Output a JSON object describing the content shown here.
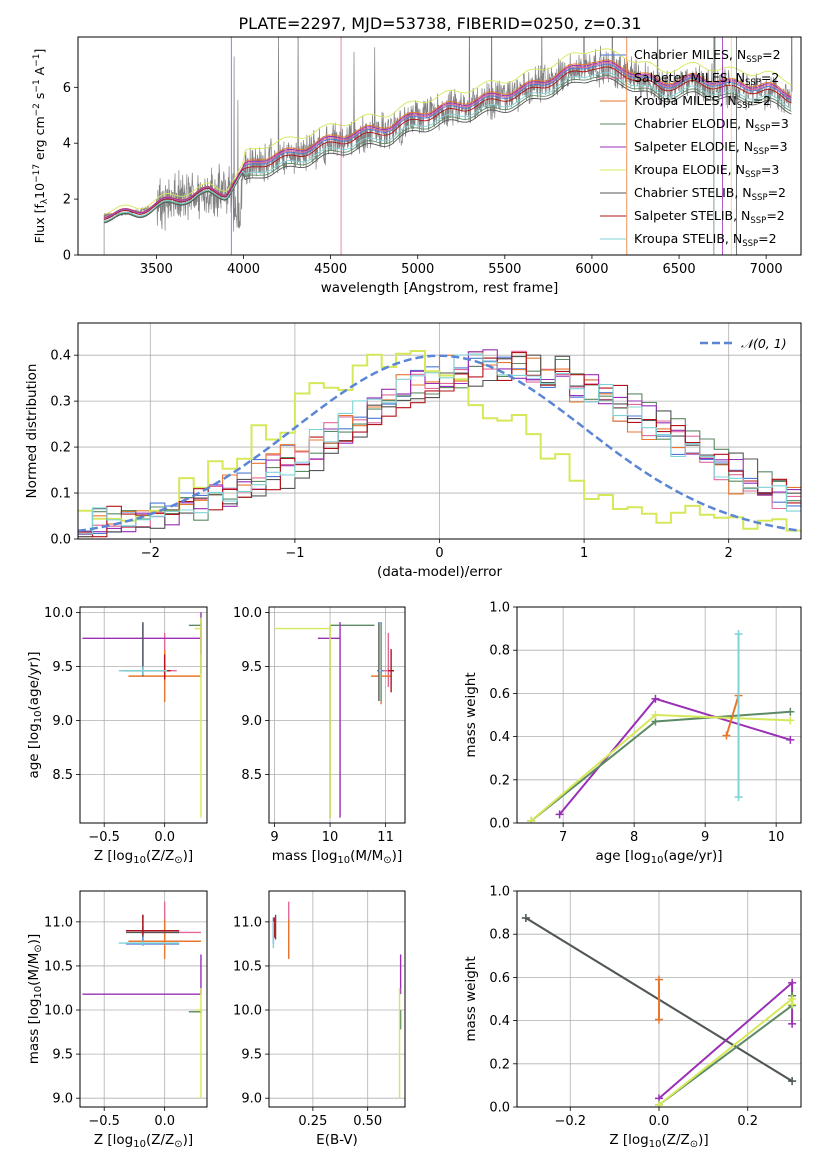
{
  "figure_title": "PLATE=2297, MJD=53738, FIBERID=0250, z=0.31",
  "colors": {
    "Chabrier MILES": "#4e79d6",
    "Salpeter MILES": "#e2689a",
    "Kroupa MILES": "#e8772e",
    "Chabrier ELODIE": "#5c8a64",
    "Salpeter ELODIE": "#9a2fb6",
    "Kroupa ELODIE": "#d6e85a",
    "Chabrier STELIB": "#555555",
    "Salpeter STELIB": "#b3141b",
    "Kroupa STELIB": "#7fd3d6"
  },
  "chart_data": [
    {
      "id": "spectrum",
      "type": "line",
      "xlabel": "wavelength [Angstrom, rest frame]",
      "ylabel": "Flux [f$_\\lambda$10$^{-17}$ erg cm$^{-2}$ s$^{-1}$ A$^{-1}$]",
      "ylabel_text": "Flux [f",
      "xlim": [
        3050,
        7200
      ],
      "ylim": [
        0,
        7.8
      ],
      "xticks": [
        3500,
        4000,
        4500,
        5000,
        5500,
        6000,
        6500,
        7000
      ],
      "yticks": [
        0,
        2,
        4,
        6
      ],
      "legend_position": "upper right",
      "legend": [
        {
          "model": "Chabrier MILES",
          "label": "Chabrier MILES, N",
          "sub": "SSP",
          "suffix": "=2"
        },
        {
          "model": "Salpeter MILES",
          "label": "Salpeter MILES, N",
          "sub": "SSP",
          "suffix": "=2"
        },
        {
          "model": "Kroupa MILES",
          "label": "Kroupa MILES, N",
          "sub": "SSP",
          "suffix": "=2"
        },
        {
          "model": "Chabrier ELODIE",
          "label": "Chabrier ELODIE, N",
          "sub": "SSP",
          "suffix": "=3"
        },
        {
          "model": "Salpeter ELODIE",
          "label": "Salpeter ELODIE, N",
          "sub": "SSP",
          "suffix": "=3"
        },
        {
          "model": "Kroupa ELODIE",
          "label": "Kroupa ELODIE, N",
          "sub": "SSP",
          "suffix": "=3"
        },
        {
          "model": "Chabrier STELIB",
          "label": "Chabrier STELIB, N",
          "sub": "SSP",
          "suffix": "=2"
        },
        {
          "model": "Salpeter STELIB",
          "label": "Salpeter STELIB, N",
          "sub": "SSP",
          "suffix": "=2"
        },
        {
          "model": "Kroupa STELIB",
          "label": "Kroupa STELIB, N",
          "sub": "SSP",
          "suffix": "=2"
        }
      ],
      "observed_color": "#808080",
      "continuum_x": [
        3200,
        3400,
        3550,
        3700,
        3800,
        3900,
        4000,
        4100,
        4250,
        4400,
        4550,
        4700,
        4850,
        5000,
        5200,
        5400,
        5600,
        5800,
        6000,
        6200,
        6400,
        6600,
        6800,
        7000,
        7150
      ],
      "continuum_y": [
        1.4,
        1.55,
        1.9,
        2.1,
        2.3,
        2.2,
        3.0,
        3.3,
        3.5,
        3.8,
        4.1,
        4.3,
        4.5,
        4.9,
        5.2,
        5.5,
        5.8,
        6.3,
        6.8,
        6.5,
        6.0,
        6.2,
        6.0,
        5.9,
        5.6
      ],
      "model_offsets": {
        "Chabrier MILES": 0.05,
        "Salpeter MILES": 0.1,
        "Kroupa MILES": 0.2,
        "Chabrier ELODIE": -0.35,
        "Salpeter ELODIE": 0.15,
        "Kroupa ELODIE": 0.6,
        "Chabrier STELIB": -0.45,
        "Salpeter STELIB": -0.05,
        "Kroupa STELIB": -0.25
      }
    },
    {
      "id": "residuals",
      "type": "line",
      "xlabel": "(data-model)/error",
      "ylabel": "Normed distribution",
      "xlim": [
        -2.5,
        2.5
      ],
      "ylim": [
        0,
        0.47
      ],
      "xticks": [
        -2,
        -1,
        0,
        1,
        2
      ],
      "yticks": [
        0.0,
        0.1,
        0.2,
        0.3,
        0.4
      ],
      "legend_position": "upper right",
      "gaussian": {
        "label": "𝒩(0, 1)",
        "mean": 0,
        "sigma": 1,
        "color": "#5b86d6"
      },
      "bins": 50,
      "hist_shift": {
        "Chabrier MILES": 0.38,
        "Salpeter MILES": 0.42,
        "Kroupa MILES": 0.36,
        "Chabrier ELODIE": 0.5,
        "Salpeter ELODIE": 0.45,
        "Kroupa ELODIE": -0.3,
        "Chabrier STELIB": 0.55,
        "Salpeter STELIB": 0.48,
        "Kroupa STELIB": 0.4
      }
    },
    {
      "id": "age_vs_Z",
      "type": "scatter",
      "xlabel": "Z [log",
      "xlabel_parts": [
        "Z [log",
        "10",
        "(Z/Z",
        "⊙",
        ")]"
      ],
      "ylabel": "age  [log10(age/yr)]",
      "ylabel_parts": [
        "age  [log",
        "10",
        "(age/yr)]"
      ],
      "xlim": [
        -0.7,
        0.35
      ],
      "ylim": [
        8.05,
        10.05
      ],
      "xticks": [
        -0.5,
        0.0
      ],
      "yticks": [
        8.5,
        9.0,
        9.5,
        10.0
      ],
      "points": [
        {
          "model": "Chabrier MILES",
          "x": -0.18,
          "y": 9.46,
          "xerr": [
            0.14,
            0.14
          ],
          "yerr": [
            0.04,
            0.44
          ]
        },
        {
          "model": "Salpeter MILES",
          "x": 0.0,
          "y": 9.46,
          "xerr": [
            0.1,
            0.1
          ],
          "yerr": [
            0.1,
            0.35
          ]
        },
        {
          "model": "Kroupa MILES",
          "x": 0.0,
          "y": 9.41,
          "xerr": [
            0.3,
            0.3
          ],
          "yerr": [
            0.24,
            0.24
          ]
        },
        {
          "model": "Chabrier ELODIE",
          "x": 0.3,
          "y": 9.88,
          "xerr": [
            0.1,
            0.0
          ],
          "yerr": [
            0.45,
            0.02
          ]
        },
        {
          "model": "Salpeter ELODIE",
          "x": 0.3,
          "y": 9.76,
          "xerr": [
            0.98,
            0.0
          ],
          "yerr": [
            0.15,
            0.24
          ]
        },
        {
          "model": "Kroupa ELODIE",
          "x": 0.3,
          "y": 9.85,
          "xerr": [
            0.05,
            0.0
          ],
          "yerr": [
            1.75,
            0.1
          ]
        },
        {
          "model": "Chabrier STELIB",
          "x": -0.18,
          "y": 9.46,
          "xerr": [
            0.18,
            0.18
          ],
          "yerr": [
            0.05,
            0.45
          ]
        },
        {
          "model": "Salpeter STELIB",
          "x": 0.0,
          "y": 9.46,
          "xerr": [
            0.05,
            0.05
          ],
          "yerr": [
            0.08,
            0.15
          ]
        },
        {
          "model": "Kroupa STELIB",
          "x": -0.18,
          "y": 9.46,
          "xerr": [
            0.2,
            0.2
          ],
          "yerr": [
            0.04,
            0.04
          ]
        }
      ]
    },
    {
      "id": "age_vs_mass",
      "type": "scatter",
      "xlabel": "mass [log10(M/M⊙)]",
      "xlabel_parts": [
        "mass [log",
        "10",
        "(M/M",
        "⊙",
        ")]"
      ],
      "ylabel": "",
      "xlim": [
        8.9,
        11.35
      ],
      "ylim": [
        8.05,
        10.05
      ],
      "xticks": [
        9,
        10,
        11
      ],
      "yticks": [
        8.5,
        9.0,
        9.5,
        10.0
      ],
      "points": [
        {
          "model": "Chabrier MILES",
          "x": 10.92,
          "y": 9.46,
          "xerr": [
            0.05,
            0.05
          ],
          "yerr": [
            0.28,
            0.45
          ]
        },
        {
          "model": "Salpeter MILES",
          "x": 11.05,
          "y": 9.46,
          "xerr": [
            0.1,
            0.1
          ],
          "yerr": [
            0.15,
            0.35
          ]
        },
        {
          "model": "Kroupa MILES",
          "x": 10.92,
          "y": 9.41,
          "xerr": [
            0.18,
            0.18
          ],
          "yerr": [
            0.26,
            0.48
          ]
        },
        {
          "model": "Chabrier ELODIE",
          "x": 10.0,
          "y": 9.88,
          "xerr": [
            0.0,
            0.8
          ],
          "yerr": [
            1.78,
            0.0
          ]
        },
        {
          "model": "Salpeter ELODIE",
          "x": 10.18,
          "y": 9.76,
          "xerr": [
            0.4,
            0.0
          ],
          "yerr": [
            1.66,
            0.15
          ]
        },
        {
          "model": "Kroupa ELODIE",
          "x": 10.0,
          "y": 9.85,
          "xerr": [
            1.0,
            0.0
          ],
          "yerr": [
            1.75,
            0.05
          ]
        },
        {
          "model": "Chabrier STELIB",
          "x": 10.88,
          "y": 9.46,
          "xerr": [
            0.03,
            0.03
          ],
          "yerr": [
            0.28,
            0.45
          ]
        },
        {
          "model": "Salpeter STELIB",
          "x": 11.1,
          "y": 9.46,
          "xerr": [
            0.05,
            0.05
          ],
          "yerr": [
            0.2,
            0.2
          ]
        },
        {
          "model": "Kroupa STELIB",
          "x": 10.9,
          "y": 9.46,
          "xerr": [
            0.02,
            0.02
          ],
          "yerr": [
            0.28,
            0.44
          ]
        }
      ]
    },
    {
      "id": "weight_vs_age",
      "type": "line",
      "xlabel": "age  [log10(age/yr)]",
      "xlabel_parts": [
        "age  [log",
        "10",
        "(age/yr)]"
      ],
      "ylabel": "mass weight",
      "xlim": [
        6.35,
        10.35
      ],
      "ylim": [
        0,
        1
      ],
      "xticks": [
        6,
        7,
        8,
        9,
        10
      ],
      "yticks": [
        0.0,
        0.2,
        0.4,
        0.6,
        0.8,
        1.0
      ],
      "series": [
        {
          "model": "Salpeter ELODIE",
          "x": [
            6.95,
            8.3,
            10.2
          ],
          "y": [
            0.04,
            0.575,
            0.385
          ]
        },
        {
          "model": "Chabrier ELODIE",
          "x": [
            6.55,
            8.3,
            10.2
          ],
          "y": [
            0.01,
            0.47,
            0.515
          ]
        },
        {
          "model": "Kroupa ELODIE",
          "x": [
            6.55,
            8.3,
            10.2
          ],
          "y": [
            0.01,
            0.5,
            0.475
          ]
        },
        {
          "model": "Kroupa MILES",
          "x": [
            9.3,
            9.47
          ],
          "y": [
            0.405,
            0.59
          ]
        },
        {
          "model": "Kroupa STELIB",
          "x": [
            9.47,
            9.47
          ],
          "y": [
            0.12,
            0.875
          ]
        }
      ]
    },
    {
      "id": "mass_vs_Z",
      "type": "scatter",
      "xlabel": "Z [log10(Z/Z⊙)]",
      "xlabel_parts": [
        "Z [log",
        "10",
        "(Z/Z",
        "⊙",
        ")]"
      ],
      "ylabel": "mass [log10(M/M⊙)]",
      "ylabel_parts": [
        "mass [log",
        "10",
        "(M/M",
        "⊙",
        ")]"
      ],
      "xlim": [
        -0.7,
        0.35
      ],
      "ylim": [
        8.9,
        11.35
      ],
      "xticks": [
        -0.5,
        0.0
      ],
      "yticks": [
        9.0,
        9.5,
        10.0,
        10.5,
        11.0
      ],
      "points": [
        {
          "model": "Chabrier MILES",
          "x": -0.18,
          "y": 10.75,
          "xerr": [
            0.14,
            0.3
          ],
          "yerr": [
            0.02,
            0.2
          ]
        },
        {
          "model": "Salpeter MILES",
          "x": 0.0,
          "y": 10.88,
          "xerr": [
            0.2,
            0.3
          ],
          "yerr": [
            0.1,
            0.35
          ]
        },
        {
          "model": "Kroupa MILES",
          "x": 0.0,
          "y": 10.78,
          "xerr": [
            0.3,
            0.3
          ],
          "yerr": [
            0.2,
            0.25
          ]
        },
        {
          "model": "Chabrier ELODIE",
          "x": 0.3,
          "y": 9.98,
          "xerr": [
            0.1,
            0.0
          ],
          "yerr": [
            0.02,
            0.02
          ]
        },
        {
          "model": "Salpeter ELODIE",
          "x": 0.3,
          "y": 10.18,
          "xerr": [
            0.98,
            0.0
          ],
          "yerr": [
            0.0,
            0.45
          ]
        },
        {
          "model": "Kroupa ELODIE",
          "x": 0.3,
          "y": 10.0,
          "xerr": [
            0.05,
            0.0
          ],
          "yerr": [
            1.0,
            0.25
          ]
        },
        {
          "model": "Chabrier STELIB",
          "x": -0.18,
          "y": 10.88,
          "xerr": [
            0.14,
            0.3
          ],
          "yerr": [
            0.05,
            0.2
          ]
        },
        {
          "model": "Salpeter STELIB",
          "x": -0.18,
          "y": 10.9,
          "xerr": [
            0.14,
            0.3
          ],
          "yerr": [
            0.05,
            0.18
          ]
        },
        {
          "model": "Kroupa STELIB",
          "x": -0.18,
          "y": 10.76,
          "xerr": [
            0.2,
            0.3
          ],
          "yerr": [
            0.02,
            0.02
          ]
        }
      ]
    },
    {
      "id": "mass_vs_EBV",
      "type": "scatter",
      "xlabel": "E(B-V)",
      "ylabel": "",
      "xlim": [
        0.05,
        0.67
      ],
      "ylim": [
        8.9,
        11.35
      ],
      "xticks": [
        0.25,
        0.5
      ],
      "xtick_labels": [
        "0.25",
        "0.50"
      ],
      "yticks": [
        9.0,
        9.5,
        10.0,
        10.5,
        11.0
      ],
      "points": [
        {
          "model": "Chabrier MILES",
          "x": 0.07,
          "y": 10.85,
          "yerr": [
            0.1,
            0.2
          ]
        },
        {
          "model": "Salpeter MILES",
          "x": 0.14,
          "y": 10.88,
          "yerr": [
            0.3,
            0.35
          ]
        },
        {
          "model": "Kroupa MILES",
          "x": 0.14,
          "y": 10.78,
          "yerr": [
            0.2,
            0.25
          ]
        },
        {
          "model": "Chabrier ELODIE",
          "x": 0.65,
          "y": 9.98,
          "yerr": [
            0.2,
            0.02
          ]
        },
        {
          "model": "Salpeter ELODIE",
          "x": 0.65,
          "y": 10.18,
          "yerr": [
            0.0,
            0.45
          ]
        },
        {
          "model": "Kroupa ELODIE",
          "x": 0.645,
          "y": 10.0,
          "yerr": [
            1.0,
            0.25
          ]
        },
        {
          "model": "Chabrier STELIB",
          "x": 0.08,
          "y": 10.9,
          "yerr": [
            0.1,
            0.18
          ]
        },
        {
          "model": "Salpeter STELIB",
          "x": 0.075,
          "y": 10.9,
          "yerr": [
            0.08,
            0.15
          ]
        },
        {
          "model": "Kroupa STELIB",
          "x": 0.07,
          "y": 10.8,
          "yerr": [
            0.1,
            0.2
          ]
        }
      ]
    },
    {
      "id": "weight_vs_Z",
      "type": "line",
      "xlabel": "Z [log10(Z/Z⊙)]",
      "xlabel_parts": [
        "Z [log",
        "10",
        "(Z/Z",
        "⊙",
        ")]"
      ],
      "ylabel": "mass weight",
      "xlim": [
        -0.32,
        0.32
      ],
      "ylim": [
        0,
        1
      ],
      "xticks": [
        -0.2,
        0.0,
        0.2
      ],
      "yticks": [
        0.0,
        0.2,
        0.4,
        0.6,
        0.8,
        1.0
      ],
      "series": [
        {
          "model": "Kroupa STELIB",
          "x": [
            -0.3,
            0.3
          ],
          "y": [
            0.875,
            0.12
          ]
        },
        {
          "model": "Chabrier STELIB",
          "x": [
            -0.3,
            0.3
          ],
          "y": [
            0.875,
            0.12
          ]
        },
        {
          "model": "Salpeter ELODIE",
          "x": [
            0.0,
            0.3,
            0.3
          ],
          "y": [
            0.04,
            0.575,
            0.385
          ]
        },
        {
          "model": "Chabrier ELODIE",
          "x": [
            0.0,
            0.3,
            0.3
          ],
          "y": [
            0.01,
            0.47,
            0.515
          ]
        },
        {
          "model": "Kroupa ELODIE",
          "x": [
            0.0,
            0.3,
            0.3
          ],
          "y": [
            0.01,
            0.5,
            0.475
          ]
        },
        {
          "model": "Kroupa MILES",
          "x": [
            0.0,
            0.0
          ],
          "y": [
            0.405,
            0.59
          ]
        }
      ]
    }
  ]
}
